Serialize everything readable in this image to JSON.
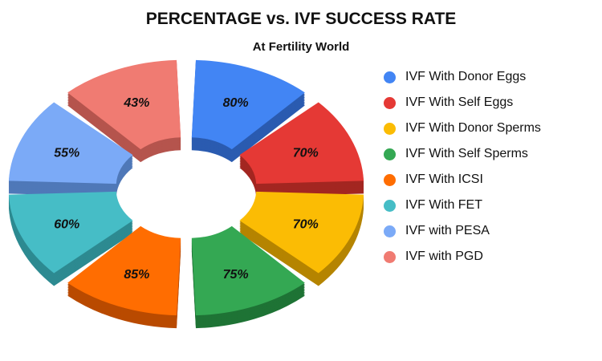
{
  "chart_data": {
    "type": "pie",
    "title": "PERCENTAGE vs. IVF SUCCESS RATE",
    "subtitle": "At Fertility World",
    "style": "3d exploded doughnut",
    "legend_position": "right",
    "categories": [
      "IVF With Donor Eggs",
      "IVF With Self Eggs",
      "IVF With Donor Sperms",
      "IVF With Self Sperms",
      "IVF With ICSI",
      "IVF With FET",
      "IVF with PESA",
      "IVF with PGD"
    ],
    "values": [
      80,
      70,
      70,
      75,
      85,
      60,
      55,
      43
    ],
    "labels": [
      "80%",
      "70%",
      "70%",
      "75%",
      "85%",
      "60%",
      "55%",
      "43%"
    ],
    "colors": [
      "#4285F4",
      "#E53935",
      "#FBBC04",
      "#34A853",
      "#FF6D01",
      "#46BDC6",
      "#7BAAF7",
      "#F07B72"
    ],
    "side_colors": [
      "#2A5BB0",
      "#A32621",
      "#B58400",
      "#1E7335",
      "#B94A00",
      "#2D8A91",
      "#4F78B8",
      "#B5544D"
    ]
  }
}
